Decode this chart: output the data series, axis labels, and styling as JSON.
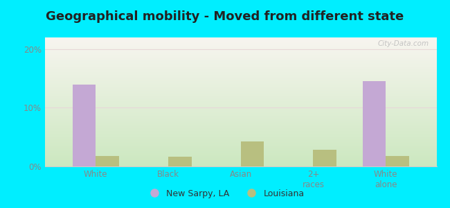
{
  "title": "Geographical mobility - Moved from different state",
  "categories": [
    "White",
    "Black",
    "Asian",
    "2+\nraces",
    "White\nalone"
  ],
  "new_sarpy_values": [
    14.0,
    0.0,
    0.0,
    0.0,
    14.5
  ],
  "louisiana_values": [
    1.8,
    1.6,
    4.2,
    2.8,
    1.8
  ],
  "bar_color_sarpy": "#c4a8d4",
  "bar_color_louisiana": "#b8bf80",
  "ylim": [
    0,
    22
  ],
  "yticks": [
    0,
    10,
    20
  ],
  "ytick_labels": [
    "0%",
    "10%",
    "20%"
  ],
  "background_outer": "#00eeff",
  "legend_sarpy": "New Sarpy, LA",
  "legend_louisiana": "Louisiana",
  "bar_width": 0.32,
  "title_fontsize": 13,
  "tick_fontsize": 8.5,
  "legend_fontsize": 9,
  "grid_color": "#e8d8d8",
  "tick_color": "#888888",
  "watermark": "City-Data.com"
}
